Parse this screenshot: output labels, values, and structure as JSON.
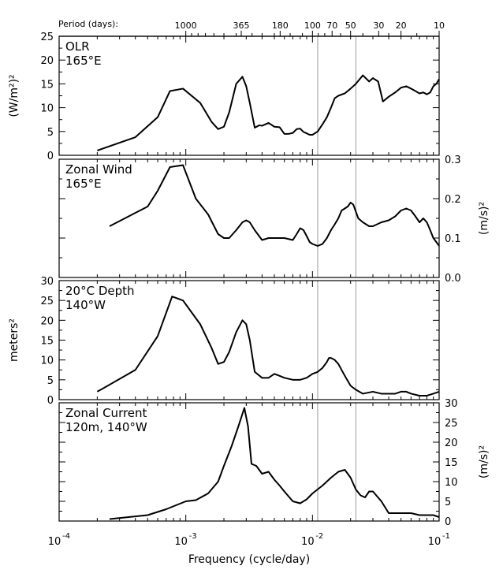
{
  "figure": {
    "top_axis_title": "Period (days):",
    "x_axis_title": "Frequency (cycle/day)",
    "x_tick_labels": [
      {
        "exp": "-4",
        "value": 0.0001
      },
      {
        "exp": "-3",
        "value": 0.001
      },
      {
        "exp": "-2",
        "value": 0.01
      },
      {
        "exp": "-1",
        "value": 0.1
      }
    ],
    "period_labels": [
      {
        "text": "1000",
        "period": 1000
      },
      {
        "text": "365",
        "period": 365
      },
      {
        "text": "180",
        "period": 180
      },
      {
        "text": "100",
        "period": 100
      },
      {
        "text": "70",
        "period": 70
      },
      {
        "text": "50",
        "period": 50
      },
      {
        "text": "30",
        "period": 30
      },
      {
        "text": "20",
        "period": 20
      },
      {
        "text": "10",
        "period": 10
      }
    ],
    "reference_lines_frequency": [
      0.011,
      0.022
    ]
  },
  "chart_data": [
    {
      "type": "line",
      "title_lines": [
        "OLR",
        "165°E"
      ],
      "ylabel_side": "left",
      "ylabel": "(W/m²)²",
      "xscale": "log",
      "xlim": [
        0.0001,
        0.1
      ],
      "ylim": [
        0,
        25
      ],
      "y_ticks": [
        0,
        5,
        10,
        15,
        20,
        25
      ],
      "x": [
        0.0002,
        0.0004,
        0.0006,
        0.00075,
        0.00095,
        0.0013,
        0.0016,
        0.0018,
        0.002,
        0.0022,
        0.0025,
        0.0028,
        0.003,
        0.0032,
        0.0035,
        0.0038,
        0.004,
        0.0045,
        0.005,
        0.0055,
        0.006,
        0.0065,
        0.007,
        0.0075,
        0.008,
        0.0085,
        0.009,
        0.0095,
        0.01,
        0.011,
        0.012,
        0.013,
        0.014,
        0.015,
        0.016,
        0.018,
        0.02,
        0.022,
        0.025,
        0.028,
        0.03,
        0.033,
        0.036,
        0.04,
        0.045,
        0.05,
        0.055,
        0.06,
        0.065,
        0.07,
        0.075,
        0.08,
        0.085,
        0.09,
        0.095,
        0.1
      ],
      "y": [
        1,
        3.8,
        8,
        13.5,
        14,
        11,
        7,
        5.5,
        6,
        9,
        15,
        16.5,
        14.5,
        11,
        5.8,
        6.3,
        6.2,
        6.8,
        6,
        5.9,
        4.5,
        4.5,
        4.7,
        5.5,
        5.6,
        4.9,
        4.6,
        4.3,
        4.3,
        5,
        6.5,
        8,
        10,
        12,
        12.5,
        13,
        14,
        15,
        16.8,
        15.5,
        16.2,
        15.5,
        11.3,
        12.3,
        13.2,
        14.2,
        14.5,
        14,
        13.5,
        13,
        13.2,
        12.8,
        13.2,
        14.5,
        15,
        16
      ]
    },
    {
      "type": "line",
      "title_lines": [
        "Zonal Wind",
        "165°E"
      ],
      "ylabel_side": "right",
      "ylabel": "(m/s)²",
      "xscale": "log",
      "xlim": [
        0.0001,
        0.1
      ],
      "ylim": [
        0,
        0.3
      ],
      "y_ticks": [
        0,
        0.1,
        0.2,
        0.3
      ],
      "y_tick_labels": [
        "0.0",
        "0.1",
        "0.2",
        "0.3"
      ],
      "x": [
        0.00025,
        0.0005,
        0.0006,
        0.00075,
        0.00095,
        0.0012,
        0.0015,
        0.0018,
        0.002,
        0.0022,
        0.0025,
        0.0028,
        0.003,
        0.0032,
        0.0035,
        0.004,
        0.0045,
        0.005,
        0.006,
        0.007,
        0.0075,
        0.008,
        0.0085,
        0.009,
        0.0095,
        0.01,
        0.011,
        0.012,
        0.013,
        0.014,
        0.015,
        0.016,
        0.017,
        0.018,
        0.019,
        0.02,
        0.021,
        0.023,
        0.025,
        0.028,
        0.03,
        0.035,
        0.04,
        0.045,
        0.05,
        0.055,
        0.06,
        0.065,
        0.07,
        0.075,
        0.08,
        0.085,
        0.09,
        0.095,
        0.1
      ],
      "y": [
        0.13,
        0.18,
        0.22,
        0.28,
        0.285,
        0.2,
        0.16,
        0.11,
        0.1,
        0.1,
        0.12,
        0.14,
        0.145,
        0.14,
        0.12,
        0.095,
        0.1,
        0.1,
        0.1,
        0.095,
        0.11,
        0.125,
        0.12,
        0.105,
        0.09,
        0.085,
        0.08,
        0.085,
        0.1,
        0.12,
        0.135,
        0.15,
        0.17,
        0.175,
        0.18,
        0.19,
        0.185,
        0.15,
        0.14,
        0.13,
        0.13,
        0.14,
        0.145,
        0.155,
        0.17,
        0.175,
        0.17,
        0.155,
        0.14,
        0.15,
        0.14,
        0.12,
        0.1,
        0.09,
        0.08
      ]
    },
    {
      "type": "line",
      "title_lines": [
        "20°C Depth",
        "140°W"
      ],
      "ylabel_side": "left",
      "ylabel": "meters²",
      "xscale": "log",
      "xlim": [
        0.0001,
        0.1
      ],
      "ylim": [
        0,
        30
      ],
      "y_ticks": [
        0,
        5,
        10,
        15,
        20,
        25,
        30
      ],
      "x": [
        0.0002,
        0.0004,
        0.0006,
        0.00078,
        0.00095,
        0.0013,
        0.0016,
        0.0018,
        0.002,
        0.0022,
        0.0025,
        0.0028,
        0.003,
        0.0032,
        0.0035,
        0.004,
        0.0045,
        0.005,
        0.0055,
        0.006,
        0.007,
        0.008,
        0.009,
        0.01,
        0.011,
        0.012,
        0.013,
        0.0135,
        0.014,
        0.015,
        0.016,
        0.018,
        0.02,
        0.022,
        0.025,
        0.03,
        0.035,
        0.04,
        0.045,
        0.05,
        0.055,
        0.06,
        0.07,
        0.08,
        0.09,
        0.1
      ],
      "y": [
        2,
        7.5,
        16,
        26,
        25,
        19,
        13,
        9,
        9.5,
        12,
        17,
        20,
        19,
        15,
        7,
        5.5,
        5.5,
        6.5,
        6,
        5.5,
        5,
        5,
        5.5,
        6.5,
        7,
        8,
        9.5,
        10.5,
        10.5,
        10,
        9,
        6,
        3.5,
        2.5,
        1.5,
        2,
        1.5,
        1.5,
        1.5,
        2,
        2,
        1.5,
        1,
        1,
        1.5,
        2
      ]
    },
    {
      "type": "line",
      "title_lines": [
        "Zonal Current",
        "120m, 140°W"
      ],
      "ylabel_side": "right",
      "ylabel": "(m/s)²",
      "xscale": "log",
      "xlim": [
        0.0001,
        0.1
      ],
      "ylim": [
        0,
        30
      ],
      "y_ticks": [
        0,
        5,
        10,
        15,
        20,
        25,
        30
      ],
      "x": [
        0.00025,
        0.0005,
        0.0007,
        0.001,
        0.0012,
        0.0015,
        0.0018,
        0.002,
        0.0023,
        0.0026,
        0.0029,
        0.0031,
        0.0033,
        0.0036,
        0.004,
        0.0045,
        0.005,
        0.0055,
        0.006,
        0.007,
        0.008,
        0.009,
        0.01,
        0.012,
        0.014,
        0.016,
        0.018,
        0.02,
        0.022,
        0.024,
        0.026,
        0.028,
        0.03,
        0.035,
        0.04,
        0.05,
        0.06,
        0.07,
        0.08,
        0.09,
        0.1
      ],
      "y": [
        0.5,
        1.5,
        3,
        5,
        5.3,
        7,
        10,
        14,
        19,
        24,
        28.7,
        24,
        14.5,
        14,
        12,
        12.5,
        10.5,
        9,
        7.5,
        5,
        4.5,
        5.5,
        7,
        9,
        11,
        12.5,
        13,
        11,
        8,
        6.5,
        6,
        7.5,
        7.5,
        5,
        2,
        2,
        2,
        1.5,
        1.5,
        1.5,
        1
      ]
    }
  ]
}
